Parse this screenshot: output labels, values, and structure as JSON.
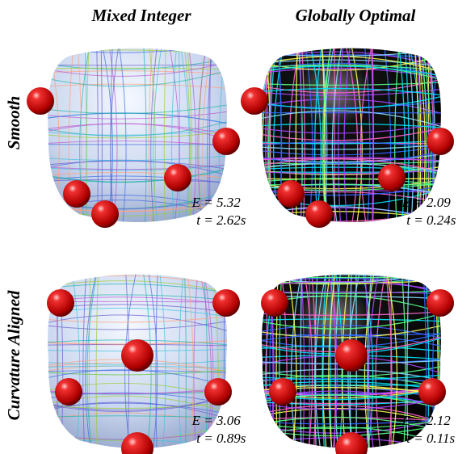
{
  "column_headers": [
    "Mixed Integer",
    "Globally Optimal"
  ],
  "row_headers": [
    "Smooth",
    "Curvature Aligned"
  ],
  "energy_symbol": "E",
  "time_symbol": "t",
  "relation": "=",
  "rows": [
    {
      "cells": [
        {
          "energy": "5.32",
          "time": "2.62s"
        },
        {
          "energy": "2.09",
          "time": "0.24s"
        }
      ]
    },
    {
      "cells": [
        {
          "energy": "3.06",
          "time": "0.89s"
        },
        {
          "energy": "2.12",
          "time": "0.11s"
        }
      ]
    }
  ]
}
